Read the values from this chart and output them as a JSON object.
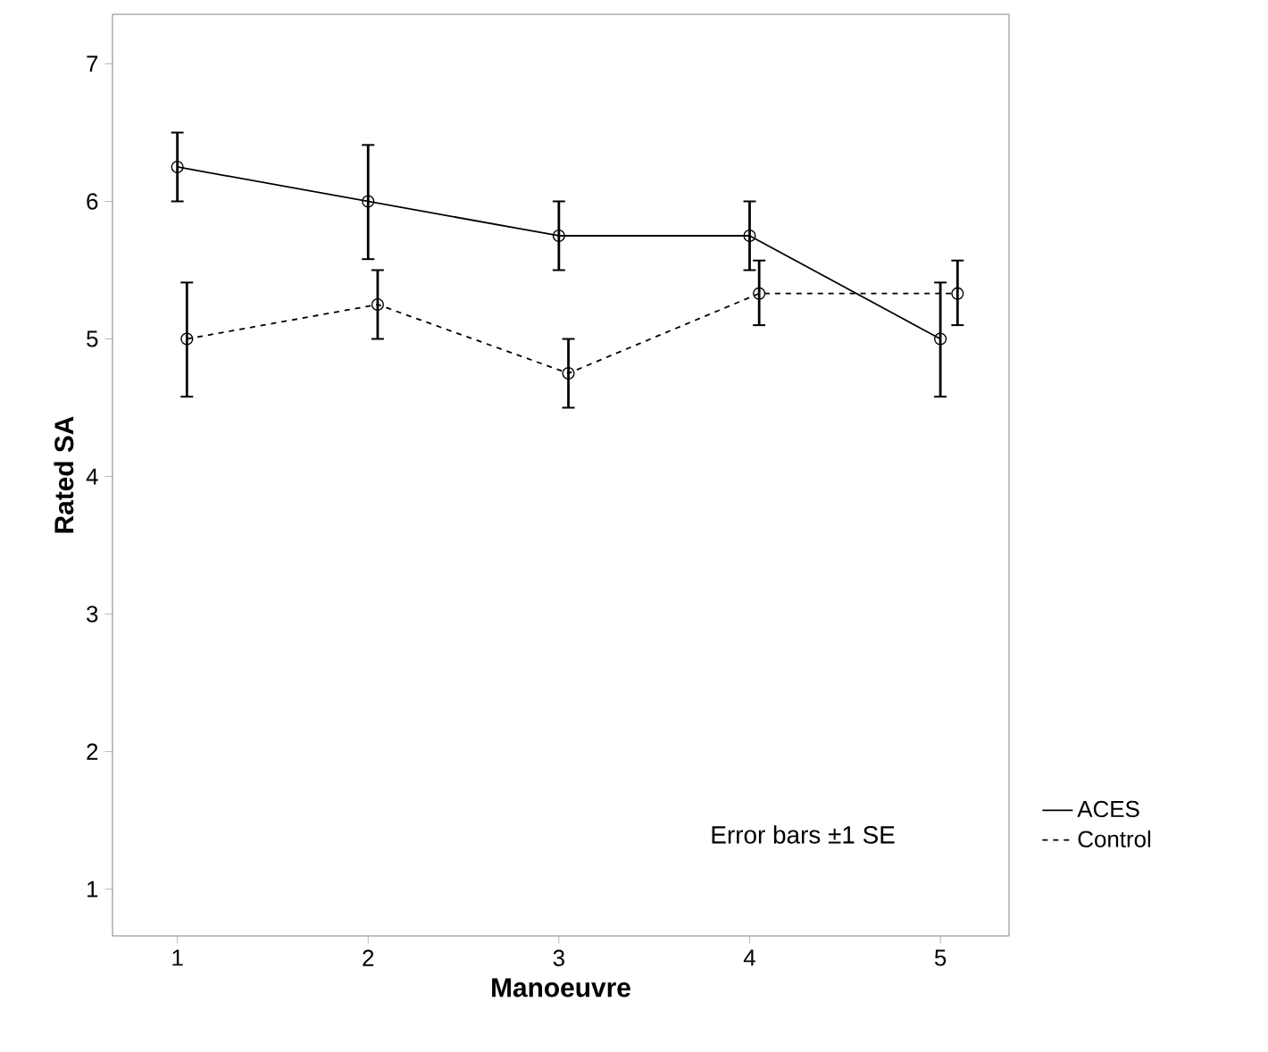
{
  "chart_data": {
    "type": "line",
    "xlabel": "Manoeuvre",
    "ylabel": "Rated SA",
    "x": [
      1,
      2,
      3,
      4,
      5
    ],
    "series": [
      {
        "name": "ACES",
        "color": "#000000",
        "line_style": "solid",
        "values": [
          6.25,
          6.0,
          5.75,
          5.75,
          5.0
        ],
        "errors": [
          [
            6.0,
            6.5
          ],
          [
            5.58,
            6.41
          ],
          [
            5.5,
            6.0
          ],
          [
            5.5,
            6.0
          ],
          [
            4.58,
            5.41
          ]
        ]
      },
      {
        "name": "Control",
        "color": "#000000",
        "line_style": "dashed",
        "x": [
          1.05,
          2.05,
          3.05,
          4.05,
          5.09
        ],
        "values": [
          5.0,
          5.25,
          4.75,
          5.33,
          5.33
        ],
        "errors": [
          [
            4.58,
            5.41
          ],
          [
            5.0,
            5.5
          ],
          [
            4.5,
            5.0
          ],
          [
            5.1,
            5.57
          ],
          [
            5.1,
            5.57
          ]
        ]
      }
    ],
    "xlim": [
      0.66,
      5.36
    ],
    "ylim": [
      0.66,
      7.36
    ],
    "xticks": [
      1,
      2,
      3,
      4,
      5
    ],
    "yticks": [
      1,
      2,
      3,
      4,
      5,
      6,
      7
    ],
    "marker": "circle",
    "grid": false,
    "legend": "bottom right",
    "annotations": [
      "Error bars ±1 SE"
    ]
  }
}
